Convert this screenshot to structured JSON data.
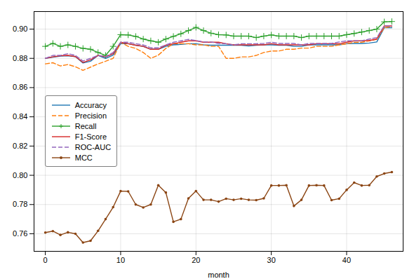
{
  "chart_data": {
    "type": "line",
    "xlabel": "month",
    "x": [
      0,
      1,
      2,
      3,
      4,
      5,
      6,
      7,
      8,
      9,
      10,
      11,
      12,
      13,
      14,
      15,
      16,
      17,
      18,
      19,
      20,
      21,
      22,
      23,
      24,
      25,
      26,
      27,
      28,
      29,
      30,
      31,
      32,
      33,
      34,
      35,
      36,
      37,
      38,
      39,
      40,
      41,
      42,
      43,
      44,
      45,
      46
    ],
    "xlim": [
      -1.5,
      47.5
    ],
    "xticks": [
      0,
      10,
      20,
      30,
      40
    ],
    "ylim": [
      0.748,
      0.912
    ],
    "yticks": [
      0.76,
      0.78,
      {
        "value": 0.8,
        "label": "0.80"
      },
      0.82,
      0.84,
      0.86,
      0.88,
      {
        "value": 0.9,
        "label": "0.90"
      }
    ],
    "grid": true,
    "legend": "left",
    "series": [
      {
        "name": "Accuracy",
        "color": "#1f77b4",
        "line_style": "solid",
        "values": [
          0.88,
          0.8808,
          0.8815,
          0.8818,
          0.8812,
          0.8768,
          0.878,
          0.882,
          0.88,
          0.8822,
          0.89,
          0.89,
          0.889,
          0.8882,
          0.8862,
          0.8862,
          0.8882,
          0.8892,
          0.8895,
          0.89,
          0.89,
          0.8892,
          0.889,
          0.889,
          0.889,
          0.889,
          0.889,
          0.8885,
          0.889,
          0.8892,
          0.8892,
          0.889,
          0.889,
          0.8882,
          0.8882,
          0.8892,
          0.8892,
          0.8892,
          0.8892,
          0.8892,
          0.89,
          0.8902,
          0.8902,
          0.8905,
          0.8912,
          0.901,
          0.901
        ]
      },
      {
        "name": "Precision",
        "color": "#ff7f0e",
        "line_style": "dashed",
        "values": [
          0.8762,
          0.877,
          0.8748,
          0.8758,
          0.8742,
          0.8718,
          0.874,
          0.8762,
          0.878,
          0.88,
          0.891,
          0.8882,
          0.8868,
          0.884,
          0.88,
          0.8822,
          0.8868,
          0.89,
          0.89,
          0.89,
          0.8892,
          0.8892,
          0.8882,
          0.8882,
          0.88,
          0.88,
          0.881,
          0.881,
          0.882,
          0.884,
          0.885,
          0.885,
          0.8862,
          0.8862,
          0.887,
          0.887,
          0.8882,
          0.8882,
          0.8882,
          0.8892,
          0.89,
          0.891,
          0.891,
          0.892,
          0.893,
          0.901,
          0.9018
        ]
      },
      {
        "name": "Recall",
        "color": "#2ca02c",
        "line_style": "solid",
        "marker": "plus",
        "values": [
          0.8882,
          0.8902,
          0.8882,
          0.8892,
          0.8882,
          0.8868,
          0.8862,
          0.884,
          0.882,
          0.8882,
          0.8962,
          0.896,
          0.895,
          0.8932,
          0.892,
          0.891,
          0.8932,
          0.895,
          0.8968,
          0.899,
          0.9012,
          0.899,
          0.8972,
          0.8962,
          0.896,
          0.8952,
          0.8952,
          0.8952,
          0.8942,
          0.8952,
          0.896,
          0.8952,
          0.8952,
          0.8952,
          0.8942,
          0.8952,
          0.8952,
          0.8952,
          0.8952,
          0.8952,
          0.8962,
          0.897,
          0.898,
          0.899,
          0.9,
          0.905,
          0.9052
        ]
      },
      {
        "name": "F1-Score",
        "color": "#d62728",
        "line_style": "solid",
        "values": [
          0.88,
          0.881,
          0.8818,
          0.882,
          0.8812,
          0.8772,
          0.879,
          0.882,
          0.881,
          0.8832,
          0.891,
          0.89,
          0.889,
          0.8882,
          0.8862,
          0.8862,
          0.889,
          0.89,
          0.891,
          0.892,
          0.892,
          0.891,
          0.891,
          0.891,
          0.89,
          0.8892,
          0.8892,
          0.8892,
          0.8892,
          0.8892,
          0.89,
          0.8892,
          0.8892,
          0.8892,
          0.8892,
          0.8892,
          0.89,
          0.89,
          0.89,
          0.89,
          0.891,
          0.892,
          0.892,
          0.8922,
          0.8932,
          0.9022,
          0.9022
        ]
      },
      {
        "name": "ROC-AUC",
        "color": "#9467bd",
        "line_style": "dashed",
        "values": [
          0.88,
          0.882,
          0.882,
          0.8832,
          0.882,
          0.8782,
          0.88,
          0.882,
          0.8812,
          0.884,
          0.891,
          0.891,
          0.89,
          0.8892,
          0.8872,
          0.8872,
          0.8892,
          0.891,
          0.892,
          0.893,
          0.8922,
          0.8912,
          0.8912,
          0.8902,
          0.89,
          0.8892,
          0.89,
          0.89,
          0.89,
          0.8902,
          0.891,
          0.8902,
          0.8902,
          0.8902,
          0.8892,
          0.8902,
          0.8902,
          0.8902,
          0.8902,
          0.8912,
          0.892,
          0.892,
          0.892,
          0.8932,
          0.8942,
          0.9022,
          0.9022
        ]
      },
      {
        "name": "MCC",
        "color": "#8B4513",
        "line_style": "solid",
        "marker": "circle",
        "values": [
          0.7608,
          0.7618,
          0.7592,
          0.761,
          0.76,
          0.754,
          0.7552,
          0.762,
          0.77,
          0.7782,
          0.7892,
          0.789,
          0.78,
          0.778,
          0.78,
          0.7932,
          0.7882,
          0.7682,
          0.77,
          0.7842,
          0.7892,
          0.7832,
          0.7832,
          0.782,
          0.784,
          0.7832,
          0.784,
          0.7832,
          0.783,
          0.7842,
          0.793,
          0.793,
          0.7932,
          0.779,
          0.7832,
          0.793,
          0.7932,
          0.793,
          0.783,
          0.784,
          0.79,
          0.795,
          0.793,
          0.7932,
          0.7992,
          0.8012,
          0.8022
        ]
      }
    ]
  }
}
